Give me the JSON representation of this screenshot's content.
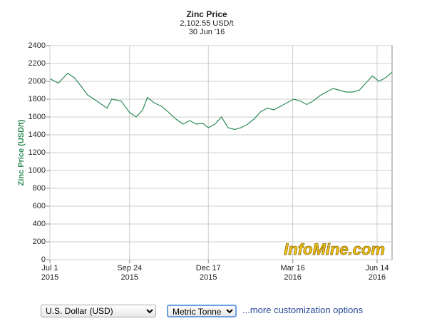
{
  "chart_data": {
    "type": "line",
    "title": "Zinc Price",
    "subtitle": "2,102.55 USD/t",
    "date_label": "30 Jun '16",
    "y_label": "Zinc Price (USD/t)",
    "watermark": "InfoMine.com",
    "color": "#2e8b57",
    "grid": true,
    "x": [
      "2015-07-01",
      "2015-07-10",
      "2015-07-20",
      "2015-07-27",
      "2015-08-03",
      "2015-08-10",
      "2015-08-17",
      "2015-08-24",
      "2015-08-31",
      "2015-09-05",
      "2015-09-15",
      "2015-09-24",
      "2015-10-01",
      "2015-10-08",
      "2015-10-13",
      "2015-10-20",
      "2015-10-28",
      "2015-11-05",
      "2015-11-12",
      "2015-11-20",
      "2015-11-27",
      "2015-12-04",
      "2015-12-11",
      "2015-12-17",
      "2015-12-24",
      "2015-12-31",
      "2016-01-07",
      "2016-01-14",
      "2016-01-21",
      "2016-01-28",
      "2016-02-04",
      "2016-02-11",
      "2016-02-18",
      "2016-02-25",
      "2016-03-03",
      "2016-03-10",
      "2016-03-17",
      "2016-03-24",
      "2016-03-31",
      "2016-04-07",
      "2016-04-14",
      "2016-04-21",
      "2016-04-28",
      "2016-05-05",
      "2016-05-12",
      "2016-05-19",
      "2016-05-26",
      "2016-06-02",
      "2016-06-09",
      "2016-06-16",
      "2016-06-23",
      "2016-06-30"
    ],
    "values": [
      2030,
      1980,
      2090,
      2040,
      1950,
      1850,
      1800,
      1750,
      1700,
      1800,
      1780,
      1650,
      1600,
      1680,
      1820,
      1760,
      1720,
      1650,
      1580,
      1520,
      1560,
      1520,
      1530,
      1480,
      1520,
      1600,
      1480,
      1460,
      1480,
      1520,
      1580,
      1660,
      1700,
      1680,
      1720,
      1760,
      1800,
      1780,
      1740,
      1780,
      1840,
      1880,
      1920,
      1900,
      1880,
      1880,
      1900,
      1980,
      2060,
      2000,
      2040,
      2102.55
    ],
    "xlim": [
      "2015-07-01",
      "2016-06-30"
    ],
    "xticks": [
      {
        "value": "2015-07-01",
        "label": "Jul 1 2015"
      },
      {
        "value": "2015-09-24",
        "label": "Sep 24 2015"
      },
      {
        "value": "2015-12-17",
        "label": "Dec 17 2015"
      },
      {
        "value": "2016-03-16",
        "label": "Mar 16 2016"
      },
      {
        "value": "2016-06-14",
        "label": "Jun 14 2016"
      }
    ],
    "ylim": [
      0,
      2400
    ],
    "yticks": [
      0,
      200,
      400,
      600,
      800,
      1000,
      1200,
      1400,
      1600,
      1800,
      2000,
      2200,
      2400
    ]
  },
  "controls": {
    "currency": "U.S. Dollar (USD)",
    "unit": "Metric Tonne",
    "link": "...more customization options"
  }
}
